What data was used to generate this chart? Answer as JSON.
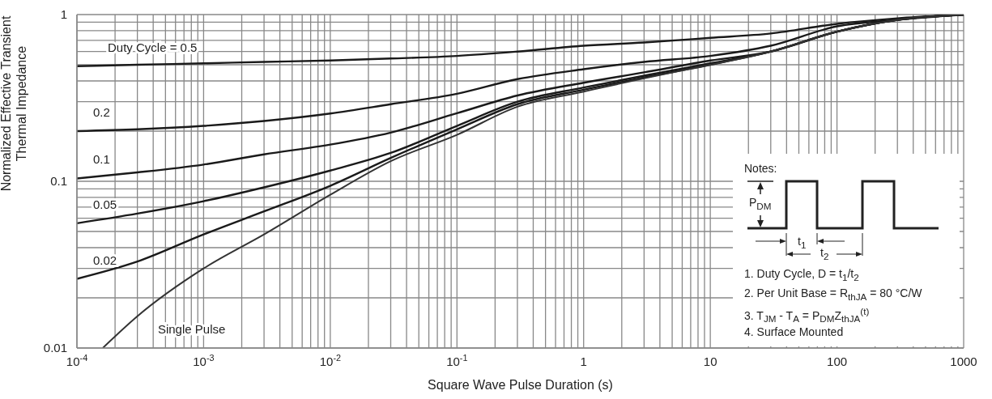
{
  "chart_data": {
    "type": "line",
    "xlabel": "Square Wave Pulse Duration (s)",
    "ylabel": "Normalized Effective Transient Thermal Impedance",
    "x": [
      0.0001,
      0.0003,
      0.001,
      0.003,
      0.01,
      0.03,
      0.1,
      0.3,
      1,
      3,
      10,
      30,
      100,
      300,
      1000
    ],
    "series": [
      {
        "name": "Duty Cycle = 0.5",
        "color": "#1a1a1a",
        "values": [
          0.49,
          0.5,
          0.51,
          0.52,
          0.53,
          0.545,
          0.565,
          0.6,
          0.65,
          0.68,
          0.725,
          0.77,
          0.88,
          0.95,
          1
        ]
      },
      {
        "name": "0.2",
        "color": "#1a1a1a",
        "values": [
          0.2,
          0.205,
          0.215,
          0.23,
          0.255,
          0.29,
          0.335,
          0.41,
          0.47,
          0.52,
          0.565,
          0.65,
          0.85,
          0.93,
          1
        ]
      },
      {
        "name": "0.1",
        "color": "#1a1a1a",
        "values": [
          0.104,
          0.113,
          0.126,
          0.145,
          0.166,
          0.196,
          0.256,
          0.327,
          0.39,
          0.45,
          0.53,
          0.6,
          0.79,
          0.93,
          1
        ]
      },
      {
        "name": "0.05",
        "color": "#1a1a1a",
        "values": [
          0.056,
          0.064,
          0.076,
          0.092,
          0.116,
          0.148,
          0.215,
          0.3,
          0.365,
          0.43,
          0.51,
          0.6,
          0.79,
          0.93,
          1
        ]
      },
      {
        "name": "0.02",
        "color": "#1a1a1a",
        "values": [
          0.026,
          0.033,
          0.048,
          0.066,
          0.094,
          0.138,
          0.205,
          0.29,
          0.354,
          0.42,
          0.5,
          0.6,
          0.79,
          0.93,
          1
        ]
      },
      {
        "name": "Single Pulse",
        "color": "#333333",
        "x": [
          0.00016,
          0.0003,
          0.001,
          0.003,
          0.01,
          0.03,
          0.1,
          0.3,
          1,
          3,
          10,
          30,
          100,
          300,
          1000
        ],
        "values": [
          0.01,
          0.0155,
          0.03,
          0.048,
          0.083,
          0.132,
          0.19,
          0.28,
          0.345,
          0.415,
          0.5,
          0.6,
          0.79,
          0.93,
          1
        ]
      }
    ],
    "log": "xy",
    "xlim": [
      0.0001,
      1000
    ],
    "ylim": [
      0.01,
      1
    ],
    "xticks": [
      {
        "value": 0.0001,
        "label": "10$^{-4}$"
      },
      {
        "value": 0.0002,
        "label": null
      },
      {
        "value": 0.0003,
        "label": null
      },
      {
        "value": 0.0004,
        "label": null
      },
      {
        "value": 0.0005,
        "label": null
      },
      {
        "value": 0.0006,
        "label": null
      },
      {
        "value": 0.0007,
        "label": null
      },
      {
        "value": 0.0008,
        "label": null
      },
      {
        "value": 0.0009,
        "label": null
      },
      {
        "value": 0.001,
        "label": "10$^{-3}$"
      },
      {
        "value": 0.002,
        "label": null
      },
      {
        "value": 0.003,
        "label": null
      },
      {
        "value": 0.004,
        "label": null
      },
      {
        "value": 0.005,
        "label": null
      },
      {
        "value": 0.006,
        "label": null
      },
      {
        "value": 0.007,
        "label": null
      },
      {
        "value": 0.008,
        "label": null
      },
      {
        "value": 0.009,
        "label": null
      },
      {
        "value": 0.01,
        "label": "10$^{-2}$"
      },
      {
        "value": 0.02,
        "label": null
      },
      {
        "value": 0.03,
        "label": null
      },
      {
        "value": 0.04,
        "label": null
      },
      {
        "value": 0.05,
        "label": null
      },
      {
        "value": 0.06,
        "label": null
      },
      {
        "value": 0.07,
        "label": null
      },
      {
        "value": 0.08,
        "label": null
      },
      {
        "value": 0.09,
        "label": null
      },
      {
        "value": 0.1,
        "label": "10$^{-1}$"
      },
      {
        "value": 0.2,
        "label": null
      },
      {
        "value": 0.3,
        "label": null
      },
      {
        "value": 0.4,
        "label": null
      },
      {
        "value": 0.5,
        "label": null
      },
      {
        "value": 0.6,
        "label": null
      },
      {
        "value": 0.7,
        "label": null
      },
      {
        "value": 0.8,
        "label": null
      },
      {
        "value": 0.9,
        "label": null
      },
      1,
      {
        "value": 2,
        "label": null
      },
      {
        "value": 3,
        "label": null
      },
      {
        "value": 4,
        "label": null
      },
      {
        "value": 5,
        "label": null
      },
      {
        "value": 6,
        "label": null
      },
      {
        "value": 7,
        "label": null
      },
      {
        "value": 8,
        "label": null
      },
      {
        "value": 9,
        "label": null
      },
      10,
      {
        "value": 20,
        "label": null
      },
      {
        "value": 30,
        "label": null
      },
      {
        "value": 40,
        "label": null
      },
      {
        "value": 50,
        "label": null
      },
      {
        "value": 60,
        "label": null
      },
      {
        "value": 70,
        "label": null
      },
      {
        "value": 80,
        "label": null
      },
      {
        "value": 90,
        "label": null
      },
      100,
      {
        "value": 200,
        "label": null
      },
      {
        "value": 300,
        "label": null
      },
      {
        "value": 400,
        "label": null
      },
      {
        "value": 500,
        "label": null
      },
      {
        "value": 600,
        "label": null
      },
      {
        "value": 700,
        "label": null
      },
      {
        "value": 800,
        "label": null
      },
      {
        "value": 900,
        "label": null
      },
      1000
    ],
    "yticks": [
      0.01,
      {
        "value": 0.02,
        "label": null
      },
      {
        "value": 0.03,
        "label": null
      },
      {
        "value": 0.04,
        "label": null
      },
      {
        "value": 0.05,
        "label": null
      },
      {
        "value": 0.06,
        "label": null
      },
      {
        "value": 0.07,
        "label": null
      },
      {
        "value": 0.08,
        "label": null
      },
      {
        "value": 0.09,
        "label": null
      },
      0.1,
      {
        "value": 0.2,
        "label": null
      },
      {
        "value": 0.3,
        "label": null
      },
      {
        "value": 0.4,
        "label": null
      },
      {
        "value": 0.5,
        "label": null
      },
      {
        "value": 0.6,
        "label": null
      },
      {
        "value": 0.7,
        "label": null
      },
      {
        "value": 0.8,
        "label": null
      },
      {
        "value": 0.9,
        "label": null
      },
      1
    ],
    "grid": true,
    "legend": false,
    "marker": "none",
    "line_style": "solid",
    "annotations": [
      "Notes:",
      "P$_{DM}$",
      "t$_{1}$",
      "t$_{2}$",
      "1. Duty Cycle, D = t$_{1}$/t$_{2}$",
      "2. Per Unit Base = R$_{thJA}$ = 80 °C/W",
      "3. T$_{JM}$ - T$_{A}$ = P$_{DM}$Z$_{thJA}$$^{(t)}$",
      "4. Surface Mounted"
    ]
  }
}
